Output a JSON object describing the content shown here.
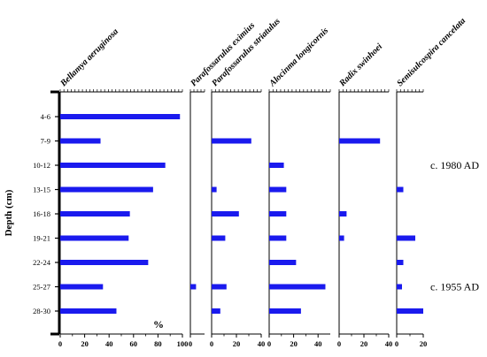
{
  "chart_data": {
    "type": "bar",
    "orientation": "horizontal",
    "ylabel": "Depth (cm)",
    "categories": [
      "4-6",
      "7-9",
      "10-12",
      "13-15",
      "16-18",
      "19-21",
      "22-24",
      "25-27",
      "28-30"
    ],
    "unit_label": "%",
    "bar_color": "#1a1aee",
    "panels": [
      {
        "title": "Bellamya aeruginosa",
        "xlim": [
          0,
          100
        ],
        "ticks": [
          0,
          20,
          40,
          60,
          80,
          100
        ],
        "values": [
          98,
          33,
          86,
          76,
          57,
          56,
          72,
          35,
          46
        ]
      },
      {
        "title": "Parafossarulus eximius",
        "xlim": [
          0,
          10
        ],
        "ticks": [
          0
        ],
        "values": [
          0,
          0,
          0,
          0,
          0,
          0,
          0,
          4,
          0
        ]
      },
      {
        "title": "Parafossarulus striatulus",
        "xlim": [
          0,
          40
        ],
        "ticks": [
          0,
          20,
          40
        ],
        "values": [
          0,
          32,
          0,
          4,
          22,
          11,
          0,
          12,
          7
        ]
      },
      {
        "title": "Alocinma longicornis",
        "xlim": [
          0,
          50
        ],
        "ticks": [
          0,
          20,
          40
        ],
        "values": [
          0,
          0,
          12,
          14,
          14,
          14,
          22,
          46,
          26
        ]
      },
      {
        "title": "Radix swinhoei",
        "xlim": [
          0,
          40
        ],
        "ticks": [
          0,
          20,
          40
        ],
        "values": [
          0,
          33,
          0,
          0,
          6,
          4,
          0,
          0,
          0
        ]
      },
      {
        "title": "Semisulcospira cancelata",
        "xlim": [
          0,
          20
        ],
        "ticks": [
          0,
          20
        ],
        "values": [
          0,
          0,
          0,
          5,
          0,
          14,
          5,
          4,
          20
        ]
      }
    ],
    "annotations": [
      {
        "text": "c. 1980 AD",
        "at_category": "10-12"
      },
      {
        "text": "c. 1955 AD",
        "at_category": "25-27"
      }
    ]
  }
}
